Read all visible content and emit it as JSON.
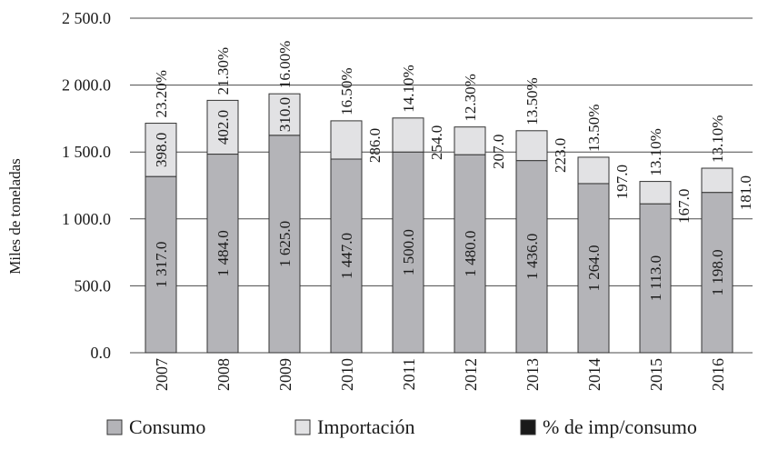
{
  "chart_data": {
    "type": "bar",
    "stacked": true,
    "categories": [
      "2007",
      "2008",
      "2009",
      "2010",
      "2011",
      "2012",
      "2013",
      "2014",
      "2015",
      "2016"
    ],
    "series": [
      {
        "name": "Consumo",
        "values": [
          1317.0,
          1484.0,
          1625.0,
          1447.0,
          1500.0,
          1480.0,
          1436.0,
          1264.0,
          1113.0,
          1198.0
        ],
        "labels": [
          "1 317.0",
          "1 484.0",
          "1 625.0",
          "1 447.0",
          "1 500.0",
          "1 480.0",
          "1 436.0",
          "1 264.0",
          "1 113.0",
          "1 198.0"
        ],
        "color": "#b4b4b8"
      },
      {
        "name": "Importación",
        "values": [
          398.0,
          402.0,
          310.0,
          286.0,
          254.0,
          207.0,
          223.0,
          197.0,
          167.0,
          181.0
        ],
        "labels": [
          "398.0",
          "402.0",
          "310.0",
          "286.0",
          "254.0",
          "207.0",
          "223.0",
          "197.0",
          "167.0",
          "181.0"
        ],
        "color": "#e2e2e4"
      },
      {
        "name": "% de imp/consumo",
        "values": [
          23.2,
          21.3,
          16.0,
          16.5,
          14.1,
          12.3,
          13.5,
          13.5,
          13.1,
          13.1
        ],
        "labels": [
          "23.20%",
          "21.30%",
          "16.00%",
          "16.50%",
          "14.10%",
          "12.30%",
          "13.50%",
          "13.50%",
          "13.10%",
          "13.10%"
        ],
        "color": "#1a1a1a"
      }
    ],
    "ylabel": "Miles de toneladas",
    "ylim": [
      0,
      2500
    ],
    "yticks": [
      0,
      500,
      1000,
      1500,
      2000,
      2500
    ],
    "yticklabels": [
      "0.0",
      "500.0",
      "1 000.0",
      "1 500.0",
      "2 000.0",
      "2 500.0"
    ],
    "grid": true,
    "legend_position": "bottom"
  }
}
